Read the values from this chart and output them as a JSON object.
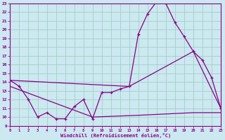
{
  "xlabel": "Windchill (Refroidissement éolien,°C)",
  "bg_color": "#cce8f0",
  "line_color": "#880088",
  "grid_color": "#99ccbb",
  "xlim": [
    0,
    23
  ],
  "ylim": [
    9,
    23
  ],
  "xticks": [
    0,
    1,
    2,
    3,
    4,
    5,
    6,
    7,
    8,
    9,
    10,
    11,
    12,
    13,
    14,
    15,
    16,
    17,
    18,
    19,
    20,
    21,
    22,
    23
  ],
  "yticks": [
    9,
    10,
    11,
    12,
    13,
    14,
    15,
    16,
    17,
    18,
    19,
    20,
    21,
    22,
    23
  ],
  "main_x": [
    0,
    1,
    2,
    3,
    4,
    5,
    6,
    7,
    8,
    9,
    10,
    11,
    12,
    13,
    14,
    15,
    16,
    17,
    18,
    19,
    20,
    21,
    22,
    23
  ],
  "main_y": [
    14.2,
    13.5,
    12.0,
    10.0,
    10.5,
    9.8,
    9.8,
    11.2,
    12.0,
    9.8,
    12.8,
    12.8,
    13.2,
    13.5,
    19.5,
    21.8,
    23.2,
    23.0,
    20.8,
    19.2,
    17.5,
    16.5,
    14.5,
    11.0
  ],
  "line2_x": [
    0,
    13,
    20,
    23
  ],
  "line2_y": [
    14.2,
    13.5,
    17.5,
    11.0
  ],
  "line3_x": [
    0,
    9,
    14,
    20,
    23
  ],
  "line3_y": [
    13.5,
    10.0,
    10.2,
    10.5,
    10.5
  ]
}
